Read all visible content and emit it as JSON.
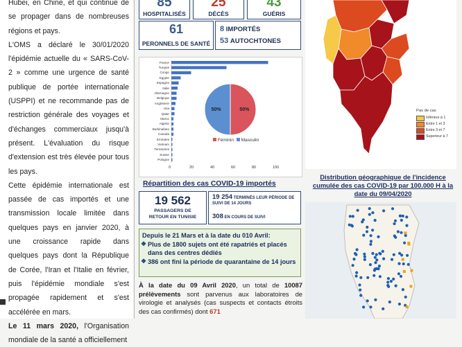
{
  "left_column": {
    "paragraphs": [
      "Hubei, en Chine, et qui continue de se propager dans de nombreuses régions et pays.",
      "L'OMS a déclaré le 30/01/2020 l'épidémie actuelle du « SARS-CoV-2 » comme une urgence de santé publique de portée internationale (USPPI) et ne recommande pas de restriction générale des voyages et d'échanges commerciaux jusqu'à présent. L'évaluation du risque d'extension est très élevée pour tous les pays.",
      "Cette épidémie internationale est passée de cas importés et une transmission locale limitée dans quelques pays en janvier 2020, à une croissance rapide dans quelques pays dont la République de Corée, l'Iran et l'Italie en février, puis l'épidémie mondiale s'est propagée rapidement et s'est accélérée en mars."
    ],
    "last_bold": "Le 11 mars 2020,",
    "last_rest": " l'Organisation mondiale de la santé a officiellement"
  },
  "stats": {
    "hospitalises": {
      "value": "85",
      "label": "HOSPITALISÉS"
    },
    "deces": {
      "value": "25",
      "label": "DÉCÈS"
    },
    "gueris": {
      "value": "43",
      "label": "GUÉRIS"
    },
    "personnels": {
      "value": "61",
      "label": "PERONNELS DE SANTÉ"
    },
    "importes": {
      "value": "8",
      "label": "IMPORTÉS"
    },
    "autochtones": {
      "value": "53",
      "label": "AUTOCHTONES"
    }
  },
  "chart_data": [
    {
      "type": "bar",
      "orientation": "horizontal",
      "categories": [
        "France",
        "Turquie",
        "Congo",
        "Egypte",
        "Espagne",
        "Italie",
        "Allemagne",
        "Belgique",
        "Angleterre",
        "Usa",
        "Qatar",
        "Maroc",
        "Algérie",
        "Burkinafaso",
        "Canada",
        "Emirates",
        "Vietnam",
        "Terretoires",
        "Suisse",
        "Pologne"
      ],
      "values": [
        93,
        53,
        19,
        9,
        7,
        6,
        5,
        5,
        4,
        3,
        3,
        2,
        2,
        2,
        2,
        1,
        1,
        1,
        1,
        1
      ],
      "xlim": [
        0,
        100
      ],
      "xticks": [
        "0",
        "20",
        "40",
        "60",
        "80",
        "100"
      ]
    },
    {
      "type": "pie",
      "labels": [
        "Féminin",
        "Masculin"
      ],
      "values": [
        50,
        50
      ],
      "value_labels": [
        "50%",
        "50%"
      ],
      "colors": [
        "#5b8fd0",
        "#d9545b"
      ],
      "legend_placement": "bottom"
    }
  ],
  "repartition": {
    "title": "Répartition des cas COVID-19 importés",
    "passagers_value": "19 562",
    "passagers_label": "PASSAGERS DE RETOUR EN TUNISIE",
    "termines_value": "19 254",
    "termines_label": "TERMINÉS LEUR PÉRIODE DE SUIVI DE 14 JOURS",
    "encours_value": "308",
    "encours_label": "EN COURS DE SUIVI"
  },
  "green_box": {
    "intro": "Depuis le 21 Mars et à la date du 010 Avril:",
    "items": [
      "Plus de 1800 sujets ont été rapatriés et placés dans des centres dédiés",
      "386 ont fini la période de quarantaine de 14 jours"
    ]
  },
  "bottom": {
    "bold1": "À la date du 09 Avril 2020",
    "t1": ", un total de ",
    "bold2": "10087 prélèvements",
    "t2": " sont parvenus aux laboratoires de virologie et analysés (cas suspects et contacts étroits des cas confirmés) dont ",
    "red": "671"
  },
  "map": {
    "legend_title": "Pas de cas",
    "legend": [
      {
        "label": "Inférieur à 1",
        "color": "#f7c948"
      },
      {
        "label": "Entre 1 et 3",
        "color": "#f08a2a"
      },
      {
        "label": "Entre 3 et 7",
        "color": "#dc4a1f"
      },
      {
        "label": "Superieur à 7",
        "color": "#a6131a"
      }
    ],
    "caption": "Distribution géographique de l'incidence cumulée des cas COVID-19 par 100.000 H à la date du 09/04/2020"
  }
}
